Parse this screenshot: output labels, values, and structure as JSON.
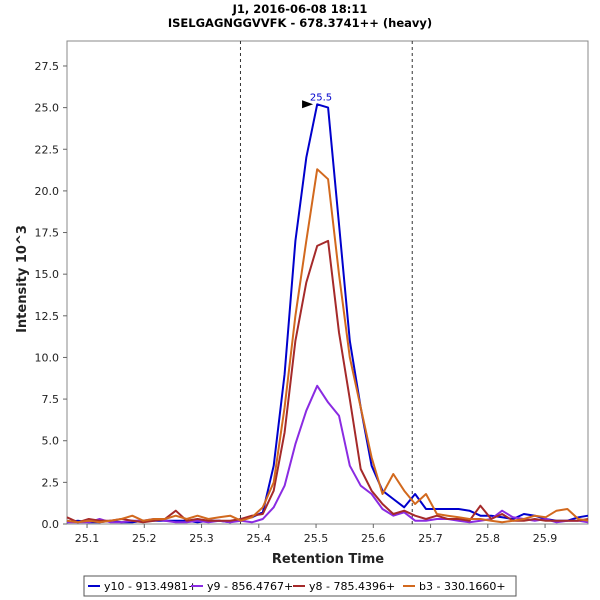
{
  "chart_data": {
    "type": "line",
    "title": "J1, 2016-06-08 18:11",
    "subtitle": "ISELGAGNGGVVFK - 678.3741++ (heavy)",
    "xlabel": "Retention Time",
    "ylabel": "Intensity 10^3",
    "xlim": [
      25.065,
      25.975
    ],
    "ylim": [
      0,
      29
    ],
    "xticks": [
      25.1,
      25.2,
      25.3,
      25.4,
      25.5,
      25.6,
      25.7,
      25.8,
      25.9
    ],
    "yticks": [
      0.0,
      2.5,
      5.0,
      7.5,
      10.0,
      12.5,
      15.0,
      17.5,
      20.0,
      22.5,
      25.0,
      27.5
    ],
    "integration_bounds": [
      25.368,
      25.668
    ],
    "peak_annotation": {
      "text": "25.5",
      "x": 25.5,
      "y": 25.2,
      "color": "#0000cc"
    },
    "x": [
      25.065,
      25.084,
      25.103,
      25.122,
      25.141,
      25.16,
      25.179,
      25.198,
      25.217,
      25.236,
      25.255,
      25.274,
      25.293,
      25.312,
      25.331,
      25.35,
      25.369,
      25.388,
      25.407,
      25.426,
      25.445,
      25.464,
      25.483,
      25.502,
      25.521,
      25.54,
      25.559,
      25.578,
      25.597,
      25.616,
      25.635,
      25.654,
      25.673,
      25.692,
      25.711,
      25.73,
      25.749,
      25.768,
      25.787,
      25.806,
      25.825,
      25.844,
      25.863,
      25.882,
      25.901,
      25.92,
      25.939,
      25.958,
      25.975
    ],
    "series": [
      {
        "name": "y10 - 913.4981+",
        "color": "#0000cc",
        "values": [
          0.1,
          0.2,
          0.1,
          0.1,
          0.2,
          0.1,
          0.1,
          0.2,
          0.2,
          0.2,
          0.2,
          0.2,
          0.1,
          0.2,
          0.2,
          0.1,
          0.3,
          0.4,
          0.7,
          3.5,
          9.0,
          17.0,
          22.0,
          25.2,
          25.0,
          18.0,
          11.0,
          7.0,
          3.5,
          2.0,
          1.5,
          1.0,
          1.8,
          0.9,
          0.9,
          0.9,
          0.9,
          0.8,
          0.5,
          0.5,
          0.4,
          0.3,
          0.6,
          0.5,
          0.3,
          0.2,
          0.2,
          0.4,
          0.5
        ]
      },
      {
        "name": "y9 - 856.4767+",
        "color": "#8a2be2",
        "values": [
          0.1,
          0.1,
          0.1,
          0.3,
          0.1,
          0.1,
          0.2,
          0.2,
          0.3,
          0.2,
          0.1,
          0.1,
          0.2,
          0.1,
          0.2,
          0.1,
          0.2,
          0.1,
          0.3,
          1.0,
          2.3,
          4.8,
          6.8,
          8.3,
          7.3,
          6.5,
          3.5,
          2.3,
          1.8,
          0.9,
          0.5,
          0.7,
          0.2,
          0.2,
          0.3,
          0.3,
          0.2,
          0.1,
          0.2,
          0.3,
          0.8,
          0.4,
          0.3,
          0.2,
          0.3,
          0.1,
          0.2,
          0.2,
          0.1
        ]
      },
      {
        "name": "y8 - 785.4396+",
        "color": "#a52a2a",
        "values": [
          0.4,
          0.1,
          0.3,
          0.2,
          0.2,
          0.3,
          0.2,
          0.1,
          0.2,
          0.3,
          0.8,
          0.2,
          0.3,
          0.2,
          0.2,
          0.2,
          0.3,
          0.5,
          0.6,
          2.0,
          5.5,
          11.0,
          14.5,
          16.7,
          17.0,
          11.5,
          7.5,
          3.3,
          2.0,
          1.2,
          0.6,
          0.8,
          0.5,
          0.3,
          0.5,
          0.3,
          0.3,
          0.2,
          1.1,
          0.3,
          0.6,
          0.2,
          0.2,
          0.3,
          0.2,
          0.2,
          0.2,
          0.2,
          0.3
        ]
      },
      {
        "name": "b3 - 330.1660+",
        "color": "#d2691e",
        "values": [
          0.2,
          0.1,
          0.2,
          0.1,
          0.2,
          0.3,
          0.5,
          0.2,
          0.3,
          0.3,
          0.5,
          0.3,
          0.5,
          0.3,
          0.4,
          0.5,
          0.2,
          0.4,
          1.0,
          2.5,
          7.0,
          12.5,
          17.0,
          21.3,
          20.7,
          15.0,
          10.0,
          7.0,
          4.0,
          1.8,
          3.0,
          2.0,
          1.2,
          1.8,
          0.6,
          0.5,
          0.4,
          0.3,
          0.3,
          0.2,
          0.1,
          0.2,
          0.3,
          0.5,
          0.4,
          0.8,
          0.9,
          0.3,
          0.2
        ]
      }
    ],
    "legend_position": "bottom-center"
  }
}
